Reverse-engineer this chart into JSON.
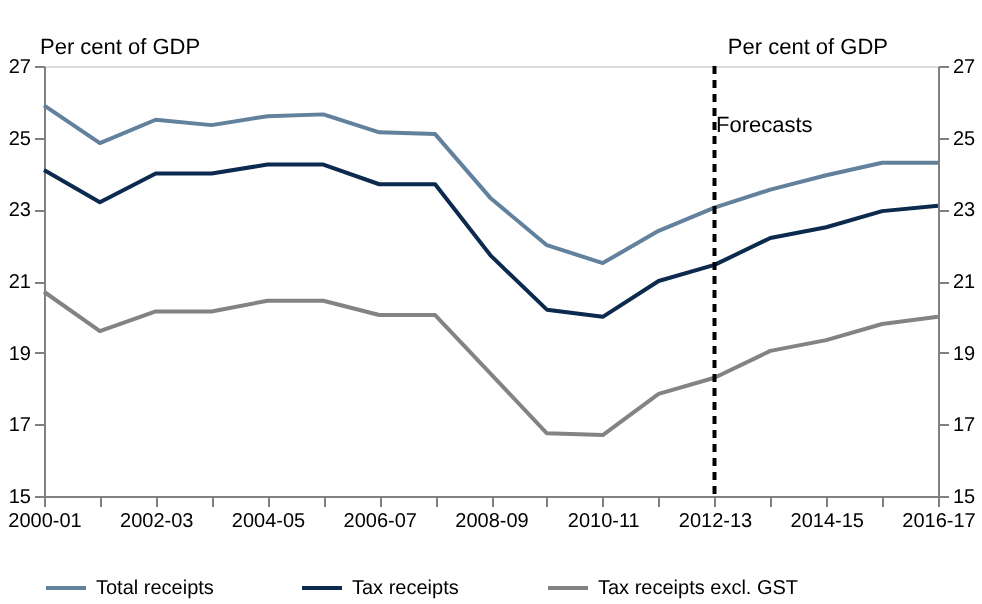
{
  "chart_data": {
    "type": "line",
    "categories": [
      "2000-01",
      null,
      "2002-03",
      null,
      "2004-05",
      null,
      "2006-07",
      null,
      "2008-09",
      null,
      "2010-11",
      null,
      "2012-13",
      null,
      "2014-15",
      null,
      "2016-17"
    ],
    "series": [
      {
        "name": "Total receipts",
        "color": "#62819c",
        "values": [
          25.9,
          24.85,
          25.5,
          25.35,
          25.6,
          25.65,
          25.15,
          25.1,
          23.3,
          22.0,
          21.5,
          22.4,
          23.05,
          23.55,
          23.95,
          24.3,
          24.3
        ]
      },
      {
        "name": "Tax receipts",
        "color": "#0b2a4e",
        "values": [
          24.1,
          23.2,
          24.0,
          24.0,
          24.25,
          24.25,
          23.7,
          23.7,
          21.7,
          20.2,
          20.0,
          21.0,
          21.45,
          22.2,
          22.5,
          22.95,
          23.1
        ]
      },
      {
        "name": "Tax receipts excl. GST",
        "color": "#838383",
        "values": [
          20.7,
          19.6,
          20.15,
          20.15,
          20.45,
          20.45,
          20.05,
          20.05,
          18.4,
          16.75,
          16.7,
          17.85,
          18.3,
          19.05,
          19.35,
          19.8,
          20.0
        ]
      }
    ],
    "ylabel": "Per cent of GDP",
    "y2label": "Per cent of GDP",
    "ylim": [
      15,
      27
    ],
    "yticks": [
      15,
      17,
      19,
      21,
      23,
      25,
      27
    ],
    "y2lim": [
      15,
      27
    ],
    "y2ticks": [
      15,
      17,
      19,
      21,
      23,
      25,
      27
    ],
    "ref_lines": [
      {
        "axis": "x",
        "value": "2012-13",
        "color": "#000000",
        "line_style": "dashed"
      }
    ],
    "annotations": [
      "Forecasts"
    ],
    "grid": false,
    "legend": "bottom",
    "marker": "none",
    "line_style": "solid"
  }
}
